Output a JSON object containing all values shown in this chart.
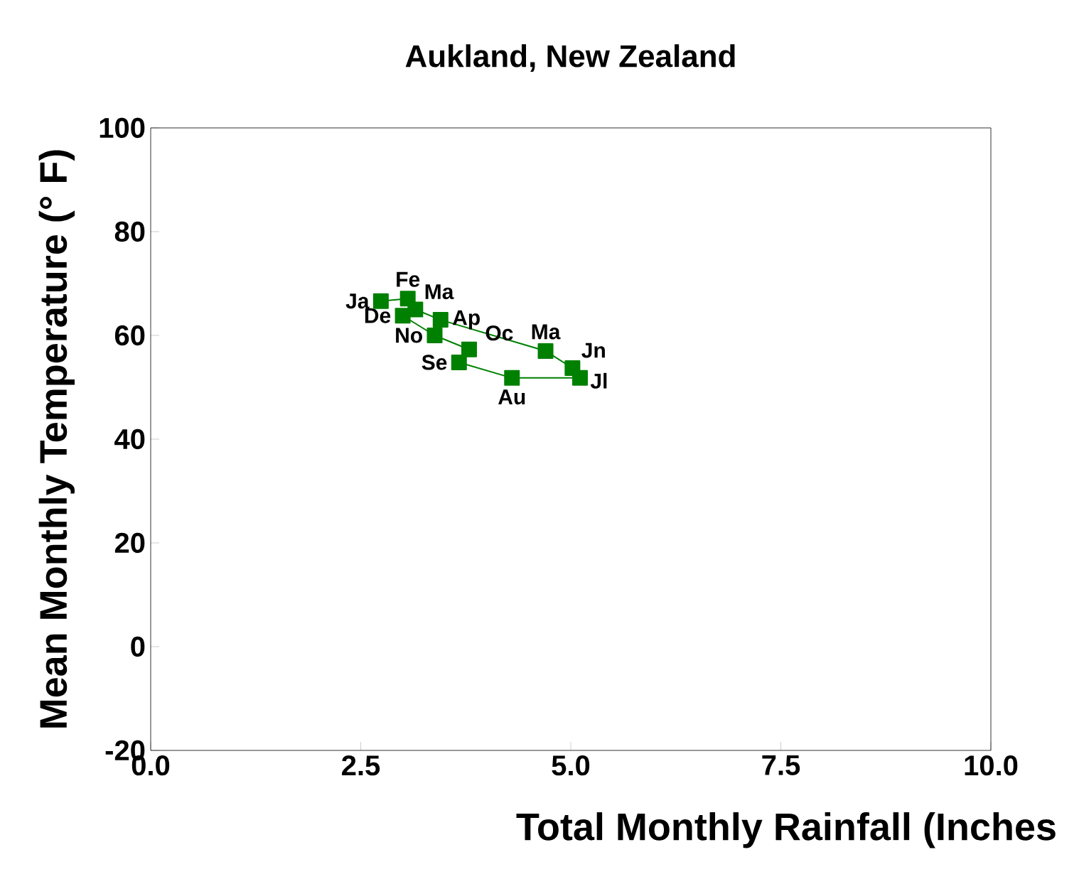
{
  "chart_data": {
    "type": "line",
    "title": "Aukland, New Zealand",
    "xlabel": "Total Monthly Rainfall (Inches",
    "ylabel": "Mean Monthly Temperature (° F)",
    "x": [
      2.74,
      3.06,
      3.15,
      3.45,
      4.7,
      5.02,
      5.11,
      4.3,
      3.67,
      3.79,
      3.38,
      3.0
    ],
    "series": [
      {
        "color": "#008000",
        "values": [
          66.6,
          67.1,
          65,
          63,
          57,
          53.7,
          51.8,
          51.8,
          54.8,
          57.3,
          60,
          63.8
        ]
      }
    ],
    "xlim": [
      0,
      10
    ],
    "ylim": [
      -20,
      100
    ],
    "xticks": [
      {
        "value": 0,
        "label": "0.0"
      },
      2.5,
      {
        "value": 5,
        "label": "5.0"
      },
      7.5,
      {
        "value": 10,
        "label": "10.0"
      }
    ],
    "yticks": [
      -20,
      0,
      20,
      40,
      60,
      80,
      100
    ],
    "marker": "square",
    "line_style": "solid",
    "grid": false,
    "annotations": [
      {
        "text": "Ja",
        "x": 2.74,
        "y": 66.6
      },
      {
        "text": "Fe",
        "x": 3.06,
        "y": 67.1
      },
      {
        "text": "Ma",
        "x": 3.15,
        "y": 65
      },
      {
        "text": "Ap",
        "x": 3.45,
        "y": 63
      },
      {
        "text": "Ma",
        "x": 4.7,
        "y": 57
      },
      {
        "text": "Jn",
        "x": 5.02,
        "y": 53.7
      },
      {
        "text": "Jl",
        "x": 5.11,
        "y": 51.8
      },
      {
        "text": "Au",
        "x": 4.3,
        "y": 51.8
      },
      {
        "text": "Se",
        "x": 3.67,
        "y": 54.8
      },
      {
        "text": "Oc",
        "x": 3.79,
        "y": 57.3
      },
      {
        "text": "No",
        "x": 3.38,
        "y": 60
      },
      {
        "text": "De",
        "x": 3.0,
        "y": 63.8
      }
    ]
  }
}
